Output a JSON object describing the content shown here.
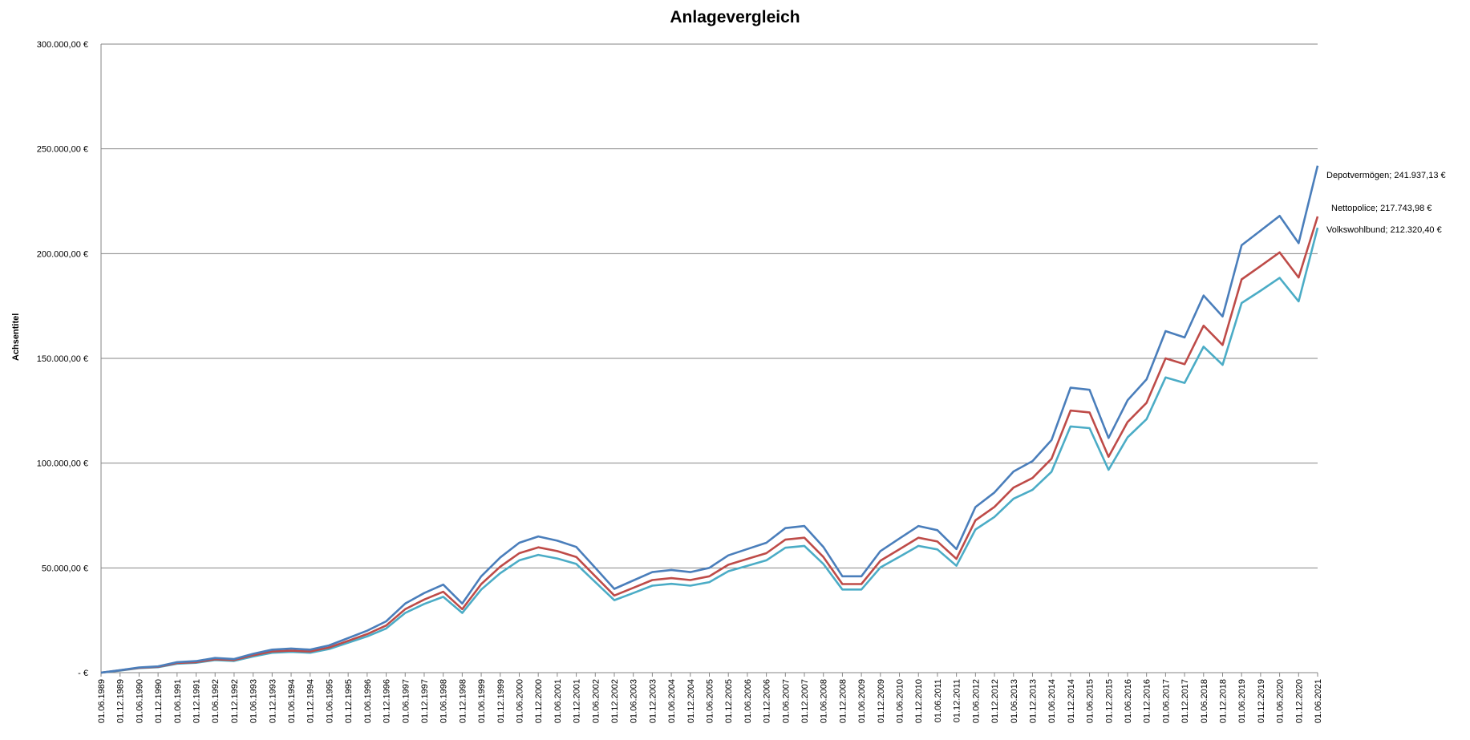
{
  "chart_data": {
    "type": "line",
    "title": "Anlagevergleich",
    "xlabel": "",
    "ylabel": "Achsentitel",
    "ylim": [
      0,
      300000
    ],
    "yticks": [
      {
        "value": 0,
        "label": "-   €"
      },
      {
        "value": 50000,
        "label": "50.000,00 €"
      },
      {
        "value": 100000,
        "label": "100.000,00 €"
      },
      {
        "value": 150000,
        "label": "150.000,00 €"
      },
      {
        "value": 200000,
        "label": "200.000,00 €"
      },
      {
        "value": 250000,
        "label": "250.000,00 €"
      },
      {
        "value": 300000,
        "label": "300.000,00 €"
      }
    ],
    "grid": "horizontal",
    "legend": "none",
    "x_ticks": [
      "01.06.1989",
      "01.12.1989",
      "01.06.1990",
      "01.12.1990",
      "01.06.1991",
      "01.12.1991",
      "01.06.1992",
      "01.12.1992",
      "01.06.1993",
      "01.12.1993",
      "01.06.1994",
      "01.12.1994",
      "01.06.1995",
      "01.12.1995",
      "01.06.1996",
      "01.12.1996",
      "01.06.1997",
      "01.12.1997",
      "01.06.1998",
      "01.12.1998",
      "01.06.1999",
      "01.12.1999",
      "01.06.2000",
      "01.12.2000",
      "01.06.2001",
      "01.12.2001",
      "01.06.2002",
      "01.12.2002",
      "01.06.2003",
      "01.12.2003",
      "01.06.2004",
      "01.12.2004",
      "01.06.2005",
      "01.12.2005",
      "01.06.2006",
      "01.12.2006",
      "01.06.2007",
      "01.12.2007",
      "01.06.2008",
      "01.12.2008",
      "01.06.2009",
      "01.12.2009",
      "01.06.2010",
      "01.12.2010",
      "01.06.2011",
      "01.12.2011",
      "01.06.2012",
      "01.12.2012",
      "01.06.2013",
      "01.12.2013",
      "01.06.2014",
      "01.12.2014",
      "01.06.2015",
      "01.12.2015",
      "01.06.2016",
      "01.12.2016",
      "01.06.2017",
      "01.12.2017",
      "01.06.2018",
      "01.12.2018",
      "01.06.2019",
      "01.12.2019",
      "01.06.2020",
      "01.12.2020",
      "01.06.2021"
    ],
    "x": [
      "1989-06",
      "1989-12",
      "1990-06",
      "1990-12",
      "1991-06",
      "1991-12",
      "1992-06",
      "1992-12",
      "1993-06",
      "1993-12",
      "1994-06",
      "1994-12",
      "1995-06",
      "1995-12",
      "1996-06",
      "1996-12",
      "1997-06",
      "1997-12",
      "1998-06",
      "1998-12",
      "1999-06",
      "1999-12",
      "2000-06",
      "2000-12",
      "2001-06",
      "2001-12",
      "2002-06",
      "2002-12",
      "2003-06",
      "2003-12",
      "2004-06",
      "2004-12",
      "2005-06",
      "2005-12",
      "2006-06",
      "2006-12",
      "2007-06",
      "2007-12",
      "2008-06",
      "2008-12",
      "2009-06",
      "2009-12",
      "2010-06",
      "2010-12",
      "2011-06",
      "2011-12",
      "2012-06",
      "2012-12",
      "2013-06",
      "2013-12",
      "2014-06",
      "2014-12",
      "2015-06",
      "2015-12",
      "2016-06",
      "2016-12",
      "2017-06",
      "2017-12",
      "2018-06",
      "2018-12",
      "2019-06",
      "2019-12",
      "2020-06",
      "2020-12",
      "2021-06"
    ],
    "series": [
      {
        "name": "Depotvermögen",
        "color": "#4a7ebb",
        "end_label": "Depotvermögen;   241.937,13 €",
        "values": [
          0,
          1200,
          2500,
          3000,
          5000,
          5500,
          7000,
          6500,
          9000,
          11000,
          11500,
          11000,
          13000,
          16500,
          20000,
          24500,
          33000,
          38000,
          42000,
          33000,
          46000,
          55000,
          62000,
          65000,
          63000,
          60000,
          50000,
          40000,
          44000,
          48000,
          49000,
          48000,
          50000,
          56000,
          59000,
          62000,
          69000,
          70000,
          60000,
          46000,
          46000,
          58000,
          64000,
          70000,
          68000,
          59000,
          79000,
          86000,
          96000,
          101000,
          111000,
          136000,
          135000,
          112000,
          130000,
          140000,
          163000,
          160000,
          180000,
          170000,
          204000,
          211000,
          218000,
          205000,
          241937
        ]
      },
      {
        "name": "Nettopolice",
        "color": "#be4b48",
        "end_label": "Nettopolice;  217.743,98 €",
        "values": [
          0,
          1100,
          2300,
          2800,
          4600,
          5000,
          6400,
          6000,
          8300,
          10100,
          10500,
          10100,
          12000,
          15200,
          18400,
          22500,
          30300,
          34900,
          38600,
          30300,
          42300,
          50600,
          57000,
          59800,
          58000,
          55200,
          46000,
          36800,
          40500,
          44200,
          45100,
          44200,
          46000,
          51500,
          54300,
          57000,
          63500,
          64400,
          55200,
          42300,
          42300,
          53400,
          58900,
          64400,
          62600,
          54300,
          72700,
          79100,
          88300,
          92900,
          102100,
          125100,
          124200,
          103000,
          119600,
          128800,
          150000,
          147200,
          165600,
          156400,
          187700,
          194100,
          200600,
          188600,
          217744
        ]
      },
      {
        "name": "Volkswohlbund",
        "color": "#4bacc6",
        "end_label": "Volkswohlbund;  212.320,40 €",
        "values": [
          0,
          1000,
          2200,
          2600,
          4300,
          4700,
          6000,
          5600,
          7700,
          9500,
          9900,
          9500,
          11300,
          14300,
          17300,
          21100,
          28500,
          32800,
          36200,
          28500,
          39700,
          47500,
          53600,
          56200,
          54500,
          51900,
          43200,
          34600,
          38000,
          41500,
          42400,
          41500,
          43200,
          48400,
          51000,
          53600,
          59600,
          60500,
          51900,
          39700,
          39700,
          50200,
          55300,
          60500,
          58800,
          51000,
          68300,
          74300,
          83000,
          87300,
          95900,
          117500,
          116700,
          96800,
          112300,
          121000,
          140900,
          138300,
          155600,
          146900,
          176400,
          182300,
          188400,
          177200,
          212320
        ]
      }
    ]
  }
}
